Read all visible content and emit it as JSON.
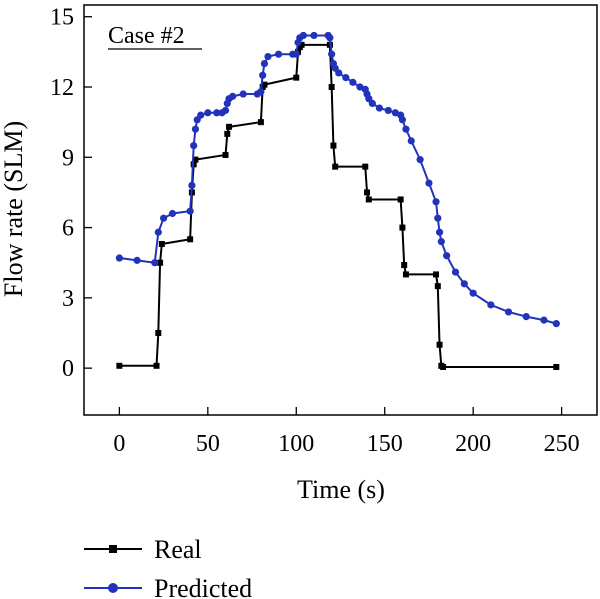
{
  "chart_data": {
    "type": "line",
    "annotation": "Case #2",
    "xlabel": "Time (s)",
    "ylabel": "Flow rate (SLM)",
    "xlim": [
      -20,
      270
    ],
    "ylim": [
      -2,
      15.5
    ],
    "xticks": [
      0,
      50,
      100,
      150,
      200,
      250
    ],
    "yticks": [
      0,
      3,
      6,
      9,
      12,
      15
    ],
    "grid": false,
    "legend_position": "bottom",
    "series": [
      {
        "name": "Real",
        "color": "#000000",
        "marker": "square",
        "x": [
          0,
          21,
          22,
          23,
          24,
          40,
          41,
          42,
          43,
          60,
          61,
          62,
          80,
          81,
          82,
          100,
          101,
          102,
          103,
          119,
          120,
          121,
          122,
          139,
          140,
          141,
          159,
          160,
          161,
          162,
          179,
          180,
          181,
          182,
          183,
          247
        ],
        "y": [
          0.1,
          0.1,
          1.5,
          4.5,
          5.3,
          5.5,
          7.5,
          8.7,
          8.9,
          9.1,
          10.0,
          10.3,
          10.5,
          12.0,
          12.1,
          12.4,
          13.5,
          13.7,
          13.8,
          13.8,
          12.0,
          9.5,
          8.6,
          8.6,
          7.5,
          7.2,
          7.2,
          6.0,
          4.4,
          4.0,
          4.0,
          3.5,
          1.0,
          0.1,
          0.05,
          0.05
        ]
      },
      {
        "name": "Predicted",
        "color": "#2233bb",
        "marker": "circle",
        "x": [
          0,
          10,
          20,
          22,
          25,
          30,
          40,
          41,
          42,
          43,
          44,
          46,
          50,
          55,
          58,
          60,
          61,
          62,
          64,
          70,
          78,
          80,
          81,
          82,
          84,
          90,
          98,
          100,
          101,
          102,
          104,
          110,
          118,
          119,
          120,
          121,
          122,
          124,
          128,
          132,
          136,
          139,
          140,
          141,
          143,
          147,
          152,
          156,
          159,
          160,
          162,
          165,
          170,
          175,
          179,
          180,
          181,
          182,
          185,
          190,
          195,
          200,
          210,
          220,
          230,
          240,
          247
        ],
        "y": [
          4.7,
          4.6,
          4.5,
          5.8,
          6.4,
          6.6,
          6.7,
          7.8,
          9.5,
          10.2,
          10.6,
          10.8,
          10.9,
          10.9,
          10.9,
          11.0,
          11.3,
          11.5,
          11.6,
          11.7,
          11.7,
          11.8,
          12.5,
          13.0,
          13.3,
          13.4,
          13.4,
          13.4,
          13.9,
          14.1,
          14.2,
          14.2,
          14.2,
          14.1,
          13.4,
          13.0,
          12.8,
          12.6,
          12.4,
          12.2,
          12.0,
          11.9,
          11.7,
          11.5,
          11.3,
          11.1,
          11.0,
          10.9,
          10.8,
          10.6,
          10.2,
          9.7,
          8.9,
          7.9,
          7.1,
          6.4,
          5.8,
          5.4,
          4.8,
          4.1,
          3.6,
          3.2,
          2.7,
          2.4,
          2.2,
          2.05,
          1.9
        ]
      }
    ]
  }
}
